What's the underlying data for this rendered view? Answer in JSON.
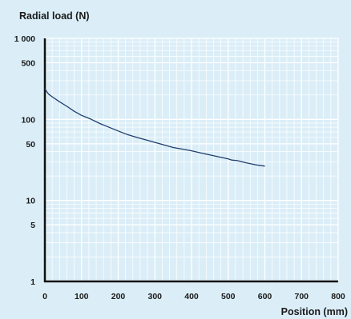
{
  "chart_data": {
    "type": "line",
    "title": "",
    "ylabel": "Radial load (N)",
    "xlabel": "Position (mm)",
    "x_scale": "linear",
    "y_scale": "log",
    "xlim": [
      0,
      800
    ],
    "ylim": [
      1,
      1000
    ],
    "x_ticks": [
      0,
      100,
      200,
      300,
      400,
      500,
      600,
      700,
      800
    ],
    "x_tick_labels": [
      "0",
      "100",
      "200",
      "300",
      "400",
      "500",
      "600",
      "700",
      "800"
    ],
    "y_ticks": [
      1,
      5,
      10,
      50,
      100,
      500,
      1000
    ],
    "y_tick_labels": [
      "1",
      "5",
      "10",
      "50",
      "100",
      "500",
      "1 000"
    ],
    "grid": true,
    "colors": {
      "background": "#dbeef8",
      "grid": "#ffffff",
      "line": "#1f3d6b",
      "axis": "#111111"
    },
    "series": [
      {
        "x": [
          0,
          5,
          10,
          20,
          40,
          60,
          80,
          100,
          125,
          150,
          175,
          200,
          225,
          250,
          275,
          300,
          325,
          350,
          375,
          400,
          425,
          450,
          475,
          500,
          510,
          525,
          550,
          575,
          600
        ],
        "values": [
          240,
          220,
          205,
          190,
          165,
          145,
          126,
          112,
          101,
          89,
          80,
          72,
          65,
          60,
          56,
          52,
          48.5,
          45,
          43,
          41,
          38.5,
          36.5,
          34.5,
          32.5,
          31.5,
          31,
          29,
          27.5,
          26.5
        ]
      }
    ]
  }
}
